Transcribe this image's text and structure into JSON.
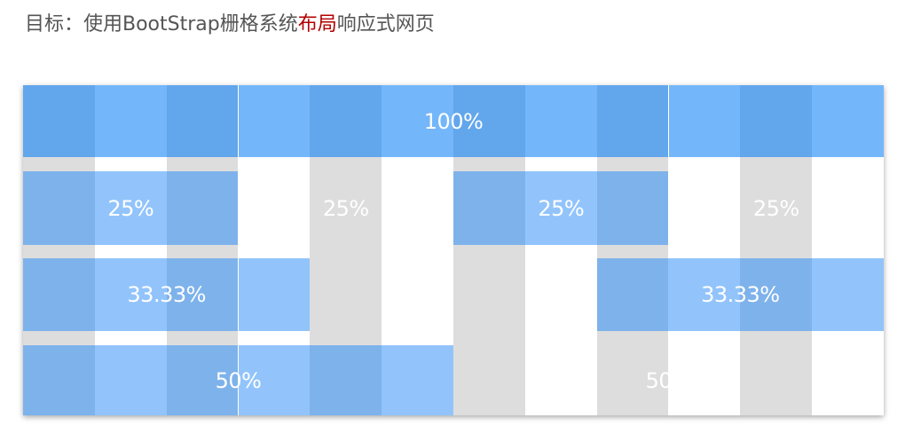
{
  "title": {
    "prefix": "目标：使用BootStrap栅格系统",
    "highlight": "布局",
    "suffix": "响应式网页"
  },
  "grid": {
    "columns": 12,
    "background_colors": [
      "#dddddd",
      "#ffffff"
    ],
    "rows": [
      {
        "palette": [
          "#62a6ec",
          "#74b6fa"
        ],
        "segments": [
          {
            "span": 12,
            "label": "100%",
            "filled": true
          }
        ]
      },
      {
        "palette": [
          "#7eb2eb",
          "#92c4fb"
        ],
        "segments": [
          {
            "span": 3,
            "label": "25%",
            "filled": true
          },
          {
            "span": 3,
            "label": "25%",
            "filled": false
          },
          {
            "span": 3,
            "label": "25%",
            "filled": true
          },
          {
            "span": 3,
            "label": "25%",
            "filled": false
          }
        ]
      },
      {
        "palette": [
          "#7eb2eb",
          "#92c4fb"
        ],
        "segments": [
          {
            "span": 4,
            "label": "33.33%",
            "filled": true
          },
          {
            "span": 4,
            "label": "",
            "filled": false
          },
          {
            "span": 4,
            "label": "33.33%",
            "filled": true
          }
        ]
      },
      {
        "palette": [
          "#7eb2eb",
          "#92c4fb"
        ],
        "segments": [
          {
            "span": 6,
            "label": "50%",
            "filled": true
          },
          {
            "span": 6,
            "label": "50%",
            "filled": false
          }
        ]
      }
    ]
  }
}
